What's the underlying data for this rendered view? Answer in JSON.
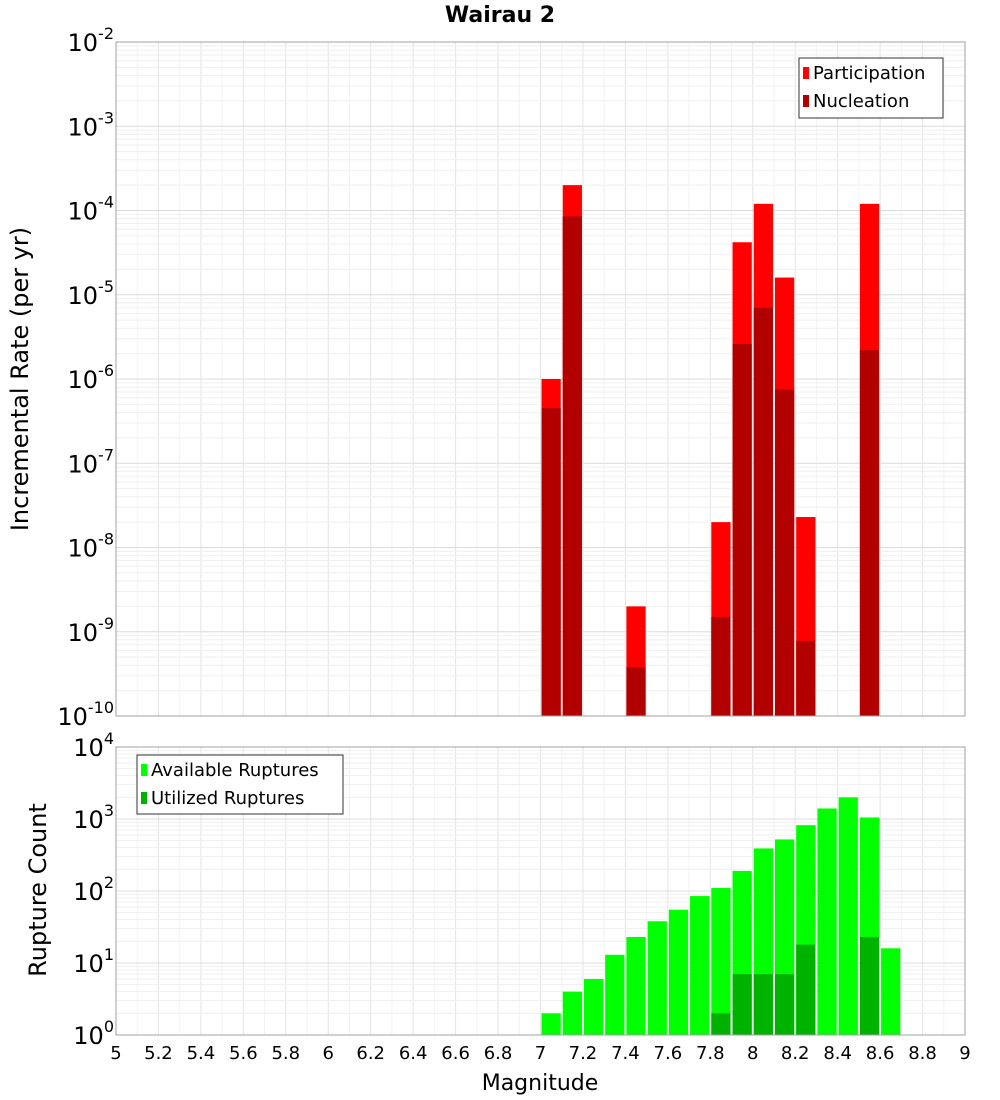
{
  "title": "Wairau 2",
  "x_axis_label": "Magnitude",
  "chart_data": [
    {
      "type": "bar",
      "ylabel": "Incremental Rate (per yr)",
      "yscale": "log",
      "ylim_exponents": [
        -10,
        -2
      ],
      "xlim": [
        5,
        9
      ],
      "bar_width": 0.1,
      "grid": true,
      "legend_position": "top-right",
      "series": [
        {
          "name": "Participation",
          "color": "#ff0000",
          "x": [
            7.05,
            7.15,
            7.45,
            7.85,
            7.95,
            8.05,
            8.15,
            8.25,
            8.55
          ],
          "values": [
            1e-06,
            0.0002,
            2e-09,
            2e-08,
            4.2e-05,
            0.00012,
            1.6e-05,
            2.3e-08,
            0.00012
          ]
        },
        {
          "name": "Nucleation",
          "color": "#b20000",
          "x": [
            7.05,
            7.15,
            7.45,
            7.85,
            7.95,
            8.05,
            8.15,
            8.25,
            8.55
          ],
          "values": [
            4.5e-07,
            8.5e-05,
            3.8e-10,
            1.5e-09,
            2.6e-06,
            7e-06,
            7.5e-07,
            7.8e-10,
            2.2e-06
          ]
        }
      ]
    },
    {
      "type": "bar",
      "ylabel": "Rupture Count",
      "yscale": "log",
      "ylim_exponents": [
        0,
        4
      ],
      "xlim": [
        5,
        9
      ],
      "bar_width": 0.1,
      "grid": true,
      "legend_position": "top-left",
      "series": [
        {
          "name": "Available Ruptures",
          "color": "#00ff00",
          "x": [
            6.75,
            6.95,
            7.05,
            7.15,
            7.25,
            7.35,
            7.45,
            7.55,
            7.65,
            7.75,
            7.85,
            7.95,
            8.05,
            8.15,
            8.25,
            8.35,
            8.45,
            8.55,
            8.65
          ],
          "values": [
            1,
            1,
            2,
            4,
            6,
            13,
            23,
            38,
            55,
            85,
            110,
            190,
            390,
            520,
            820,
            1400,
            2000,
            1050,
            16
          ]
        },
        {
          "name": "Utilized Ruptures",
          "color": "#00b200",
          "x": [
            7.05,
            7.15,
            7.45,
            7.85,
            7.95,
            8.05,
            8.15,
            8.25,
            8.55
          ],
          "values": [
            1,
            1,
            1,
            2,
            7,
            7,
            7,
            18,
            23
          ]
        }
      ]
    }
  ]
}
